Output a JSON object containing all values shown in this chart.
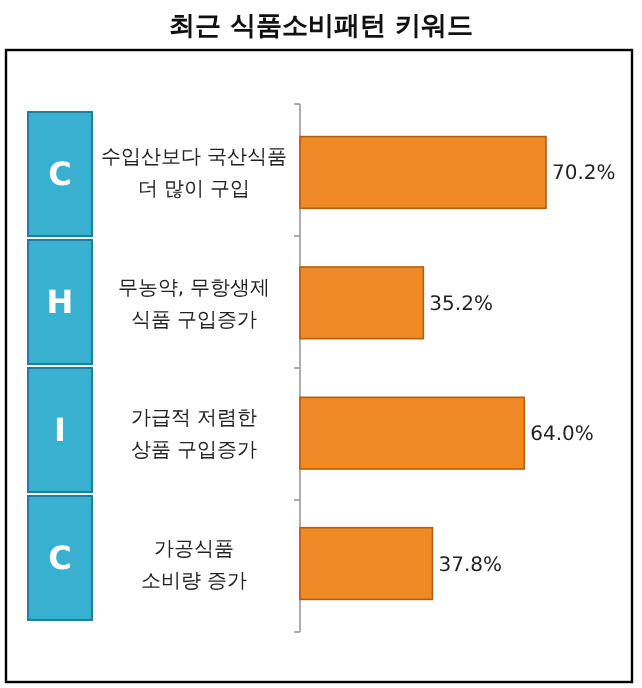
{
  "chart_data": {
    "type": "bar",
    "orientation": "horizontal",
    "title": "최근 식품소비패턴 키워드",
    "categories": [
      "수입산보다 국산식품\n더 많이 구입",
      "무농약, 무항생제\n식품 구입증가",
      "가급적 저렴한\n상품 구입증가",
      "가공식품\n소비량 증가"
    ],
    "values": [
      70.2,
      35.2,
      64.0,
      37.8
    ],
    "value_labels": [
      "70.2%",
      "35.2%",
      "64.0%",
      "37.8%"
    ],
    "color": "#f08a24",
    "annotations": [
      "C",
      "H",
      "I",
      "C"
    ]
  }
}
